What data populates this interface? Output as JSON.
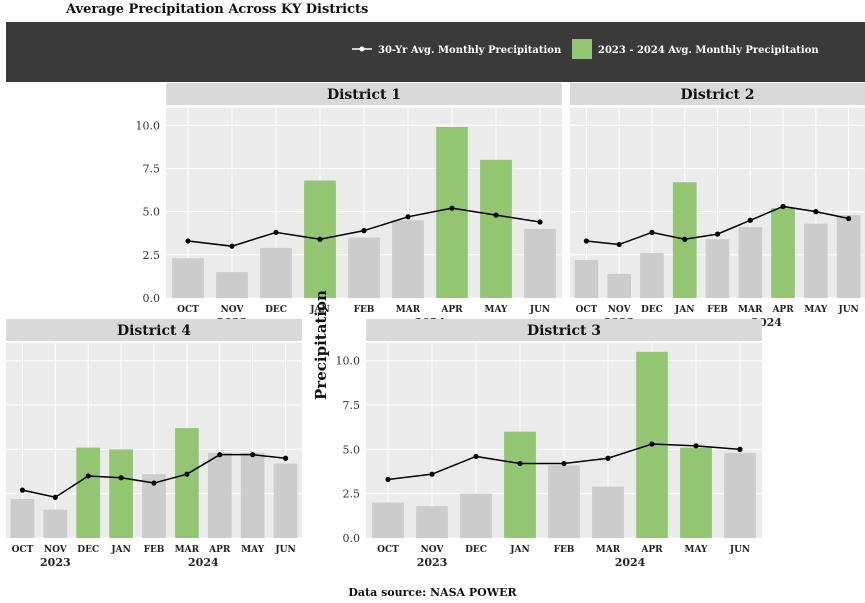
{
  "title": "Average Precipitation Across KY Districts",
  "caption": "Data source: NASA POWER",
  "colors": {
    "panel_bg": "#ebebeb",
    "grid": "#ffffff",
    "strip_bg": "#d9d9d9",
    "bar_highlight": "#93c572",
    "bar_gray": "#cccccc",
    "line": "#000000",
    "dark_band": "#3a3a3a"
  },
  "chart_data": [
    {
      "type": "bar",
      "panel": "District 1",
      "ylabel": "Precipitation",
      "ylim": [
        0,
        11
      ],
      "yticks": [
        "10.0",
        "7.5",
        "5.0",
        "2.5",
        "0.0"
      ],
      "months": [
        "OCT",
        "NOV",
        "DEC",
        "JAN",
        "FEB",
        "MAR",
        "APR",
        "MAY",
        "JUN"
      ],
      "years": [
        "2023",
        "2024"
      ],
      "series": [
        {
          "name": "2023 - 2024 Avg. Monthly Precipitation",
          "kind": "bar",
          "values": [
            2.3,
            1.5,
            2.9,
            6.8,
            3.5,
            4.5,
            9.9,
            8.0,
            4.0
          ]
        },
        {
          "name": "30-Yr Avg. Monthly Precipitation",
          "kind": "line",
          "values": [
            3.3,
            3.0,
            3.8,
            3.4,
            3.9,
            4.7,
            5.2,
            4.8,
            4.4
          ]
        }
      ]
    },
    {
      "type": "bar",
      "panel": "District 2",
      "ylabel": "Precipitation",
      "ylim": [
        0,
        11
      ],
      "yticks": [
        "10.0",
        "7.5",
        "5.0",
        "2.5",
        "0.0"
      ],
      "months": [
        "OCT",
        "NOV",
        "DEC",
        "JAN",
        "FEB",
        "MAR",
        "APR",
        "MAY",
        "JUN"
      ],
      "years": [
        "2023",
        "2024"
      ],
      "series": [
        {
          "name": "2023 - 2024 Avg. Monthly Precipitation",
          "kind": "bar",
          "values": [
            2.2,
            1.4,
            2.6,
            6.7,
            3.4,
            4.1,
            5.2,
            4.3,
            4.8
          ]
        },
        {
          "name": "30-Yr Avg. Monthly Precipitation",
          "kind": "line",
          "values": [
            3.3,
            3.1,
            3.8,
            3.4,
            3.7,
            4.5,
            5.3,
            5.0,
            4.6
          ]
        }
      ]
    },
    {
      "type": "bar",
      "panel": "District 4",
      "ylabel": "Precipitation",
      "ylim": [
        0,
        11
      ],
      "yticks": [
        "10.0",
        "7.5",
        "5.0",
        "2.5",
        "0.0"
      ],
      "months": [
        "OCT",
        "NOV",
        "DEC",
        "JAN",
        "FEB",
        "MAR",
        "APR",
        "MAY",
        "JUN"
      ],
      "years": [
        "2023",
        "2024"
      ],
      "series": [
        {
          "name": "2023 - 2024 Avg. Monthly Precipitation",
          "kind": "bar",
          "values": [
            2.2,
            1.6,
            5.1,
            5.0,
            3.6,
            6.2,
            4.8,
            4.8,
            4.2
          ]
        },
        {
          "name": "30-Yr Avg. Monthly Precipitation",
          "kind": "line",
          "values": [
            2.7,
            2.3,
            3.5,
            3.4,
            3.1,
            3.6,
            4.7,
            4.7,
            4.5
          ]
        }
      ]
    },
    {
      "type": "bar",
      "panel": "District 3",
      "ylabel": "Precipitation",
      "ylim": [
        0,
        11
      ],
      "yticks": [
        "10.0",
        "7.5",
        "5.0",
        "2.5",
        "0.0"
      ],
      "months": [
        "OCT",
        "NOV",
        "DEC",
        "JAN",
        "FEB",
        "MAR",
        "APR",
        "MAY",
        "JUN"
      ],
      "years": [
        "2023",
        "2024"
      ],
      "series": [
        {
          "name": "2023 - 2024 Avg. Monthly Precipitation",
          "kind": "bar",
          "values": [
            2.0,
            1.8,
            2.5,
            6.0,
            4.1,
            2.9,
            10.5,
            5.1,
            4.8
          ]
        },
        {
          "name": "30-Yr Avg. Monthly Precipitation",
          "kind": "line",
          "values": [
            3.3,
            3.6,
            4.6,
            4.2,
            4.2,
            4.5,
            5.3,
            5.2,
            5.0
          ]
        }
      ]
    }
  ]
}
